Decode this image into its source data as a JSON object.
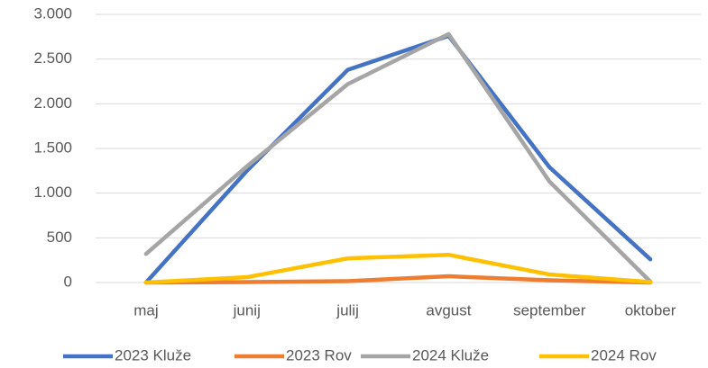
{
  "chart_data": {
    "type": "line",
    "categories": [
      "maj",
      "junij",
      "julij",
      "avgust",
      "september",
      "oktober"
    ],
    "series": [
      {
        "name": "2023 Kluže",
        "color": "#4472c4",
        "values": [
          0,
          1250,
          2380,
          2760,
          1290,
          260
        ]
      },
      {
        "name": "2023 Rov",
        "color": "#ed7d31",
        "values": [
          0,
          5,
          15,
          70,
          25,
          0
        ]
      },
      {
        "name": "2024 Kluže",
        "color": "#a5a5a5",
        "values": [
          320,
          1300,
          2220,
          2780,
          1130,
          10
        ]
      },
      {
        "name": "2024 Rov",
        "color": "#ffc000",
        "values": [
          0,
          60,
          270,
          310,
          90,
          5
        ]
      }
    ],
    "ylim": [
      0,
      3000
    ],
    "yticks": [
      0,
      500,
      {
        "value": 1000,
        "label": "1.000"
      },
      {
        "value": 1500,
        "label": "1.500"
      },
      {
        "value": 2000,
        "label": "2.000"
      },
      {
        "value": 2500,
        "label": "2.500"
      },
      {
        "value": 3000,
        "label": "3.000"
      }
    ],
    "grid": true,
    "legend": "bottom"
  }
}
